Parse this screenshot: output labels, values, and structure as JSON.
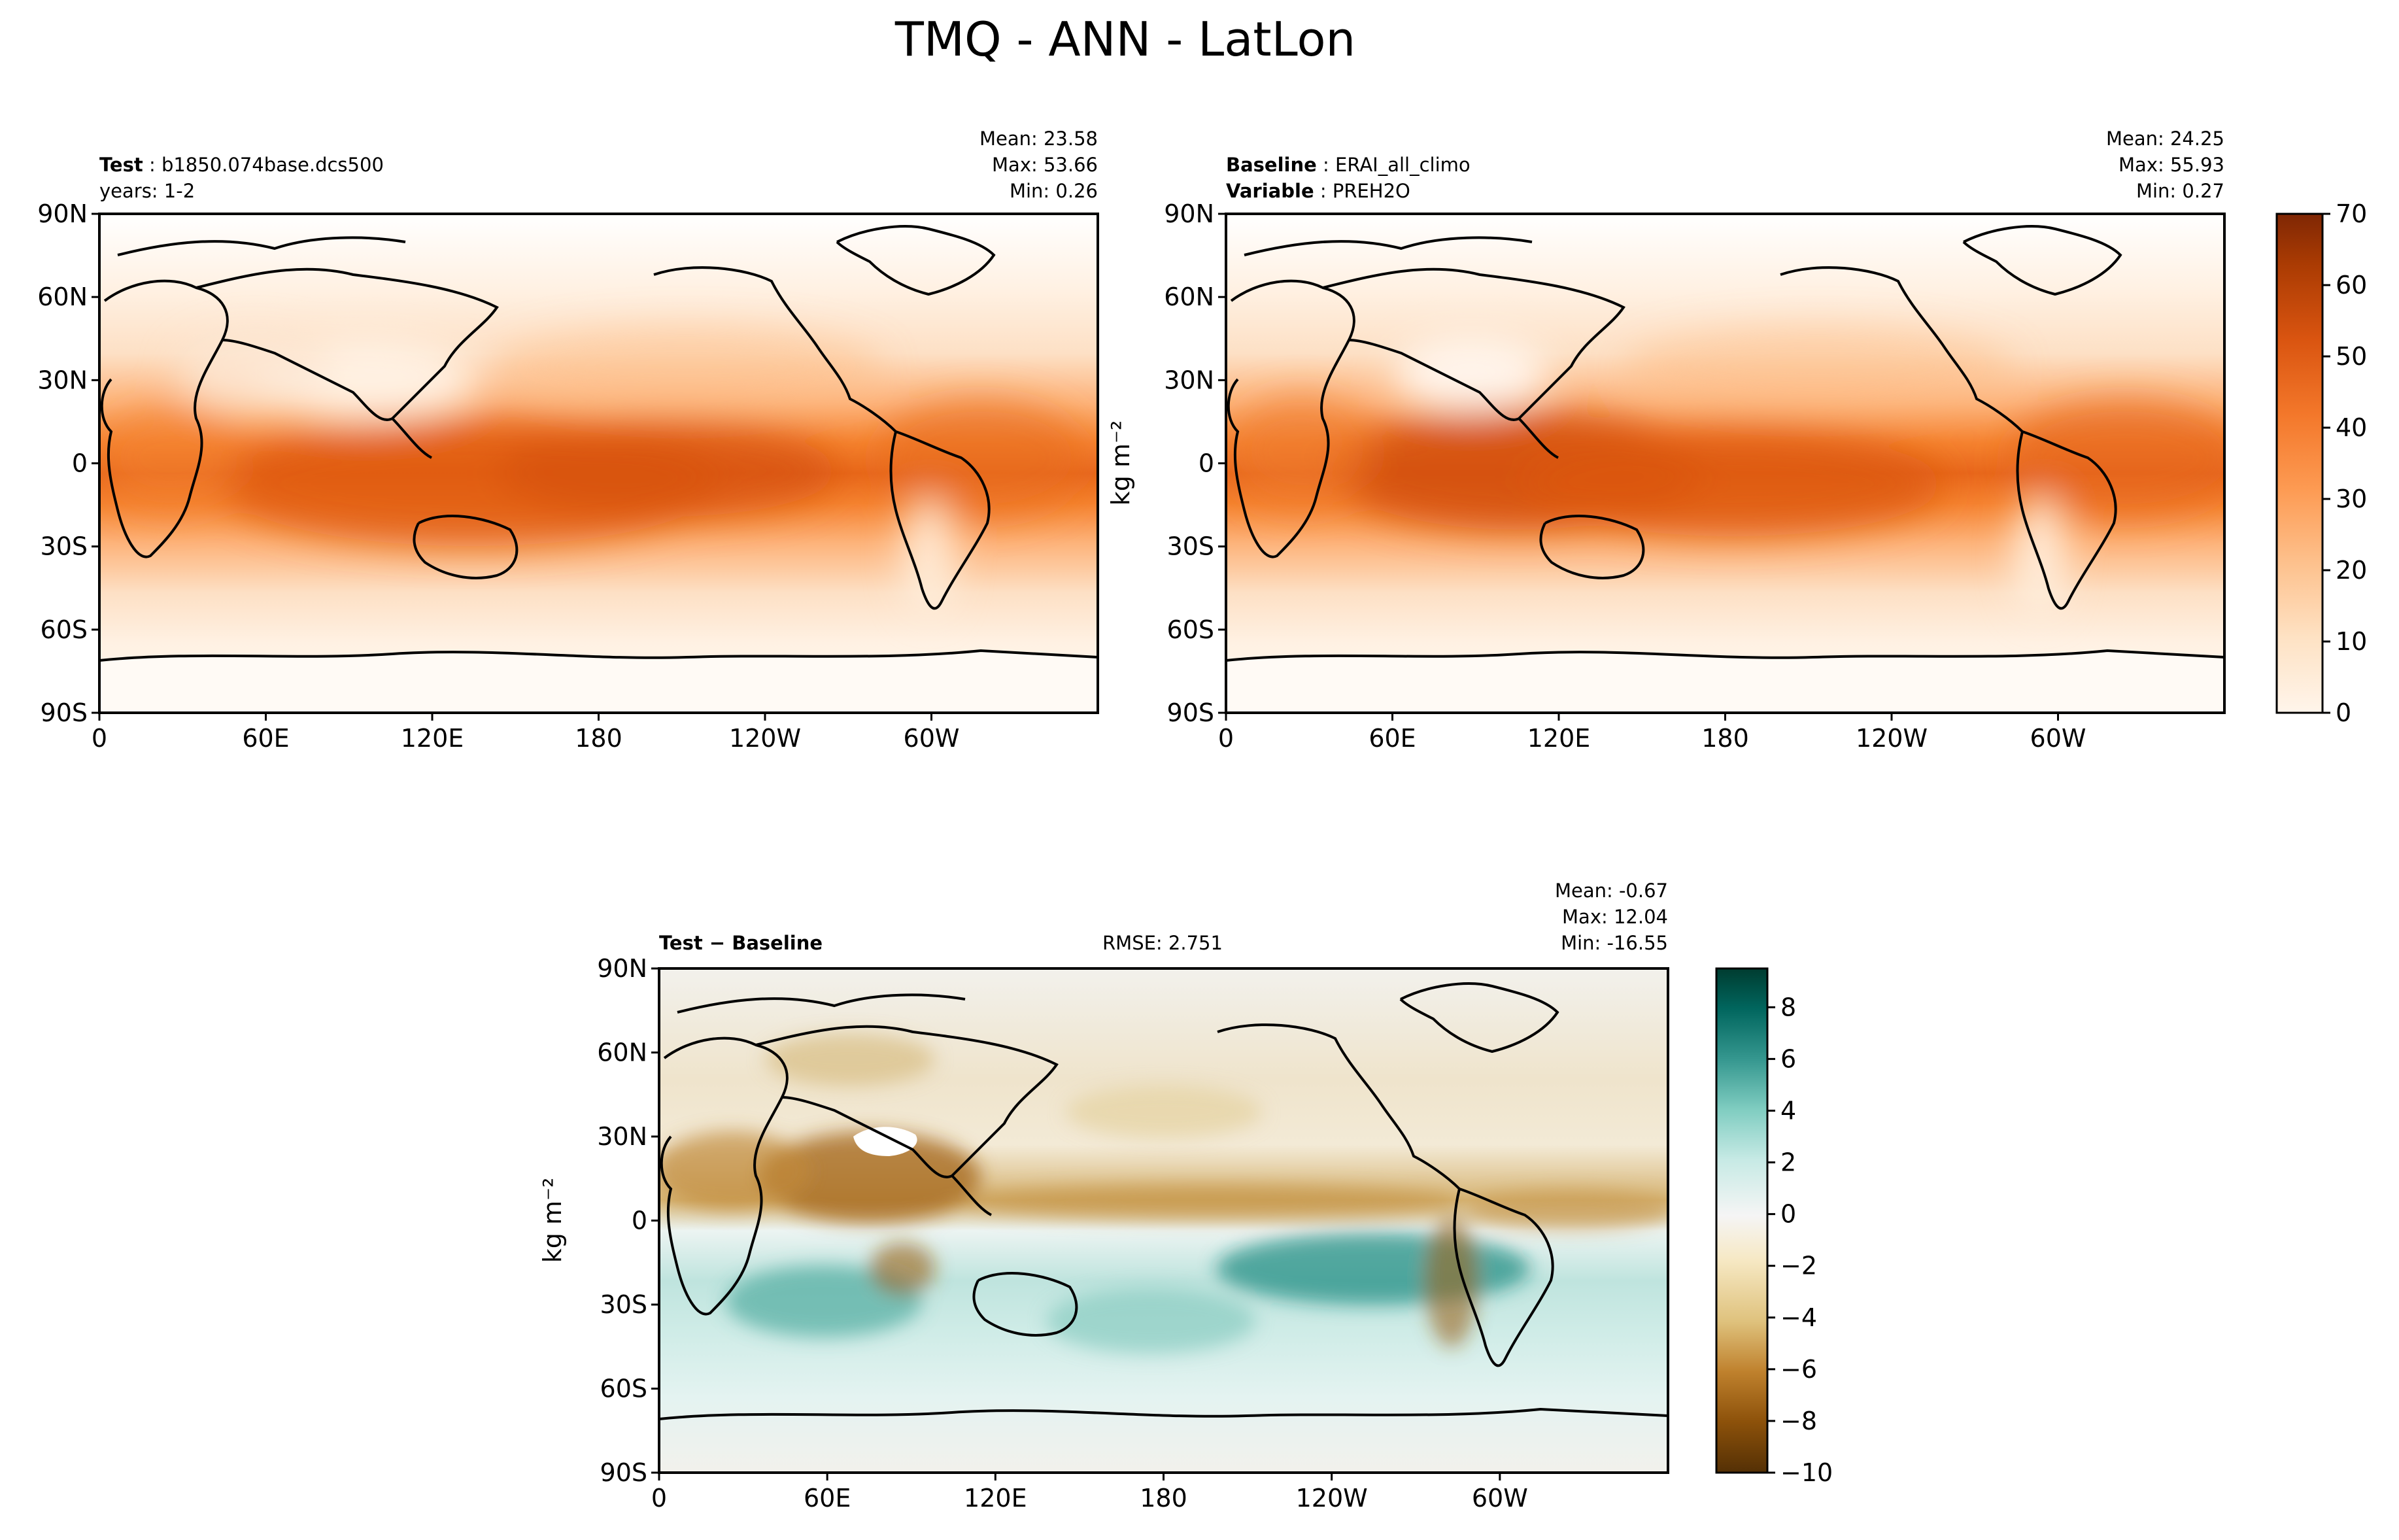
{
  "figure": {
    "title": "TMQ - ANN - LatLon"
  },
  "panels": [
    {
      "id": "test",
      "left_label_bold": "Test",
      "left_label_text": "b1850.074base.dcs500",
      "left_label2_bold": "",
      "left_label2_text": "years: 1-2",
      "center_text": "",
      "stats": [
        "Mean: 23.58",
        "Max: 53.66",
        "Min:  0.26"
      ],
      "ylabel": ""
    },
    {
      "id": "baseline",
      "left_label_bold": "Baseline",
      "left_label_text": "ERAI_all_climo",
      "left_label2_bold": "Variable",
      "left_label2_text": "PREH2O",
      "center_text": "",
      "stats": [
        "Mean: 24.25",
        "Max: 55.93",
        "Min:  0.27"
      ],
      "ylabel": "kg m⁻²"
    },
    {
      "id": "diff",
      "left_label_bold": "Test − Baseline",
      "left_label_text": "",
      "left_label2_bold": "",
      "left_label2_text": "",
      "center_text": "RMSE: 2.751",
      "stats": [
        "Mean: -0.67",
        "Max: 12.04",
        "Min: -16.55"
      ],
      "ylabel": "kg m⁻²"
    }
  ],
  "axes": {
    "lon_ticks": [
      {
        "value": 0,
        "label": "0"
      },
      {
        "value": 60,
        "label": "60E"
      },
      {
        "value": 120,
        "label": "120E"
      },
      {
        "value": 180,
        "label": "180"
      },
      {
        "value": 240,
        "label": "120W"
      },
      {
        "value": 300,
        "label": "60W"
      }
    ],
    "lat_ticks": [
      {
        "value": 90,
        "label": "90N"
      },
      {
        "value": 60,
        "label": "60N"
      },
      {
        "value": 30,
        "label": "30N"
      },
      {
        "value": 0,
        "label": "0"
      },
      {
        "value": -30,
        "label": "30S"
      },
      {
        "value": -60,
        "label": "60S"
      },
      {
        "value": -90,
        "label": "90S"
      }
    ]
  },
  "colorbars": {
    "abs": {
      "ticks": [
        0,
        10,
        20,
        30,
        40,
        50,
        60,
        70
      ],
      "labels": [
        "0",
        "10",
        "20",
        "30",
        "40",
        "50",
        "60",
        "70"
      ],
      "colors": [
        "#fff5eb",
        "#fee9d4",
        "#fddcbb",
        "#fdc799",
        "#fdad74",
        "#fd9750",
        "#f47d31",
        "#e6641a",
        "#cd4f0b",
        "#ae3f03",
        "#8f3203"
      ]
    },
    "diff": {
      "ticks": [
        -10,
        -8,
        -6,
        -4,
        -2,
        0,
        2,
        4,
        6,
        8
      ],
      "labels": [
        "−10",
        "−8",
        "−6",
        "−4",
        "−2",
        "0",
        "2",
        "4",
        "6",
        "8"
      ],
      "colors": [
        "#543005",
        "#8c510a",
        "#bf812d",
        "#dfc27d",
        "#f6e8c3",
        "#f5f5f5",
        "#c7eae5",
        "#80cdc1",
        "#35978f",
        "#01665e",
        "#003c30"
      ]
    }
  },
  "chart_data": [
    {
      "type": "heatmap",
      "title": "Test",
      "xlabel": "",
      "ylabel": "",
      "xlim": [
        0,
        360
      ],
      "ylim": [
        -90,
        90
      ],
      "colorbar_range": [
        0,
        70
      ],
      "stats": {
        "mean": 23.58,
        "max": 53.66,
        "min": 0.26
      }
    },
    {
      "type": "heatmap",
      "title": "Baseline",
      "xlabel": "",
      "ylabel": "kg m⁻²",
      "xlim": [
        0,
        360
      ],
      "ylim": [
        -90,
        90
      ],
      "colorbar_range": [
        0,
        70
      ],
      "stats": {
        "mean": 24.25,
        "max": 55.93,
        "min": 0.27
      }
    },
    {
      "type": "heatmap",
      "title": "Test − Baseline",
      "xlabel": "",
      "ylabel": "kg m⁻²",
      "xlim": [
        0,
        360
      ],
      "ylim": [
        -90,
        90
      ],
      "colorbar_range": [
        -10,
        9.5
      ],
      "stats": {
        "mean": -0.67,
        "max": 12.04,
        "min": -16.55,
        "rmse": 2.751
      }
    }
  ]
}
